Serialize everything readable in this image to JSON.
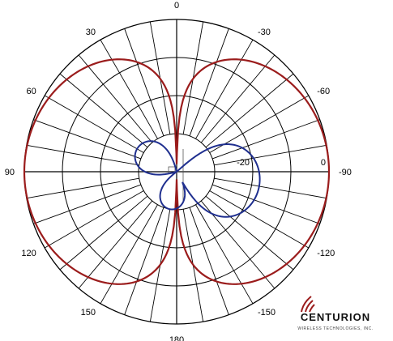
{
  "chart_data": {
    "type": "polar",
    "angle_unit": "degrees",
    "angle_ticks": [
      "0",
      "30",
      "60",
      "90",
      "120",
      "150",
      "180",
      "-150",
      "-120",
      "-90",
      "-60",
      "-30"
    ],
    "angle_tick_values": [
      0,
      30,
      60,
      90,
      120,
      150,
      180,
      -150,
      -120,
      -90,
      -60,
      -30
    ],
    "angle_gridline_step": 10,
    "radial_rings_db": [
      -40,
      -30,
      -20,
      -10,
      0
    ],
    "radial_ring_labels": [
      "-20",
      "0"
    ],
    "radial_ring_label_values": [
      -20,
      0
    ],
    "radial_min_db": -40,
    "radial_max_db": 0,
    "grid": true,
    "series": [
      {
        "color": "#9b1c1c",
        "pattern": "figure-eight",
        "max_db": 0,
        "null_db": -38,
        "null_angles": [
          0,
          180
        ]
      },
      {
        "color": "#1f2f8f",
        "pattern": "multi-lobe",
        "lobes": [
          {
            "angle": -100,
            "peak_db": -18
          },
          {
            "angle": 60,
            "peak_db": -28
          },
          {
            "angle": 170,
            "peak_db": -30
          }
        ]
      }
    ]
  },
  "logo": {
    "name": "CENTURION",
    "tagline": "WIRELESS TECHNOLOGIES, INC."
  },
  "colors": {
    "grid": "#000000",
    "background": "#ffffff"
  }
}
